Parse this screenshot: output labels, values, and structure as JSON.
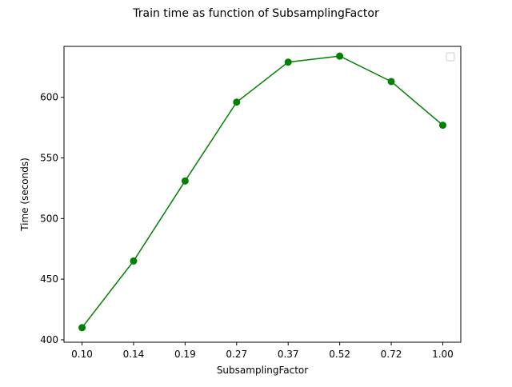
{
  "chart_data": {
    "type": "line",
    "title": "Train time as function of SubsamplingFactor",
    "xlabel": "SubsamplingFactor",
    "ylabel": "Time (seconds)",
    "categories": [
      "0.10",
      "0.14",
      "0.19",
      "0.27",
      "0.37",
      "0.52",
      "0.72",
      "1.00"
    ],
    "series": [
      {
        "color": "#008000",
        "marker": "circle",
        "values": [
          410,
          465,
          531,
          596,
          629,
          634,
          613,
          577
        ]
      }
    ],
    "ylim": [
      398,
      642
    ],
    "yticks": [
      400,
      450,
      500,
      550,
      600
    ],
    "grid": false,
    "legend": {
      "placement": "top-right",
      "entries": []
    }
  }
}
